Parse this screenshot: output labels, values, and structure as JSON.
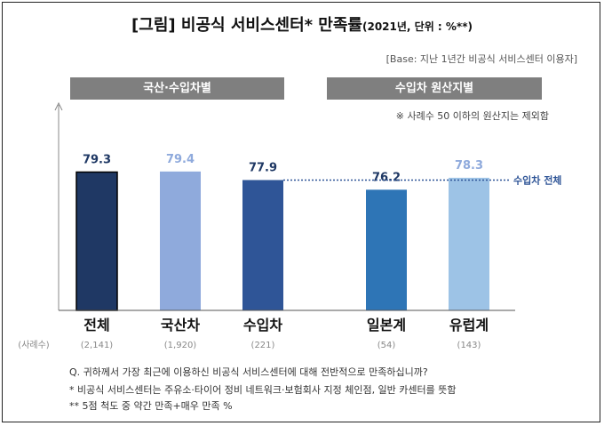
{
  "title": {
    "main": "[그림] 비공식 서비스센터* 만족률",
    "sub": "(2021년, 단위 : %**)"
  },
  "base_note": "[Base: 지난 1년간  비공식 서비스센터 이용자]",
  "group_headers": [
    "국산·수입차별",
    "수입차 원산지별"
  ],
  "exclusion_note": "※ 사례수 50 이하의 원산지는 제외함",
  "sample_label": "(사례수)",
  "reference_line_label": "수입차 전체",
  "colors": {
    "total": "#1f3864",
    "domestic": "#8faadc",
    "imported": "#2f5597",
    "japan": "#2e75b6",
    "europe": "#9dc3e6",
    "reference_line": "#2f5597"
  },
  "chart_data": {
    "type": "bar",
    "categories": [
      "전체",
      "국산차",
      "수입차",
      "일본계",
      "유럽계"
    ],
    "values": [
      79.3,
      79.4,
      77.9,
      76.2,
      78.3
    ],
    "value_labels": [
      "79.3",
      "79.4",
      "77.9",
      "76.2",
      "78.3"
    ],
    "sample_sizes": [
      "(2,141)",
      "(1,920)",
      "(221)",
      "(54)",
      "(143)"
    ],
    "reference_line": 77.9
  },
  "footer": {
    "question": "Q. 귀하께서 가장 최근에 이용하신 비공식 서비스센터에 대해 전반적으로 만족하십니까?",
    "note1": "* 비공식 서비스센터는 주유소·타이어 정비 네트워크·보험회사 지정 체인점, 일반 카센터를 뜻함",
    "note2": "** 5점 척도 중 약간 만족+매우 만족 %"
  }
}
